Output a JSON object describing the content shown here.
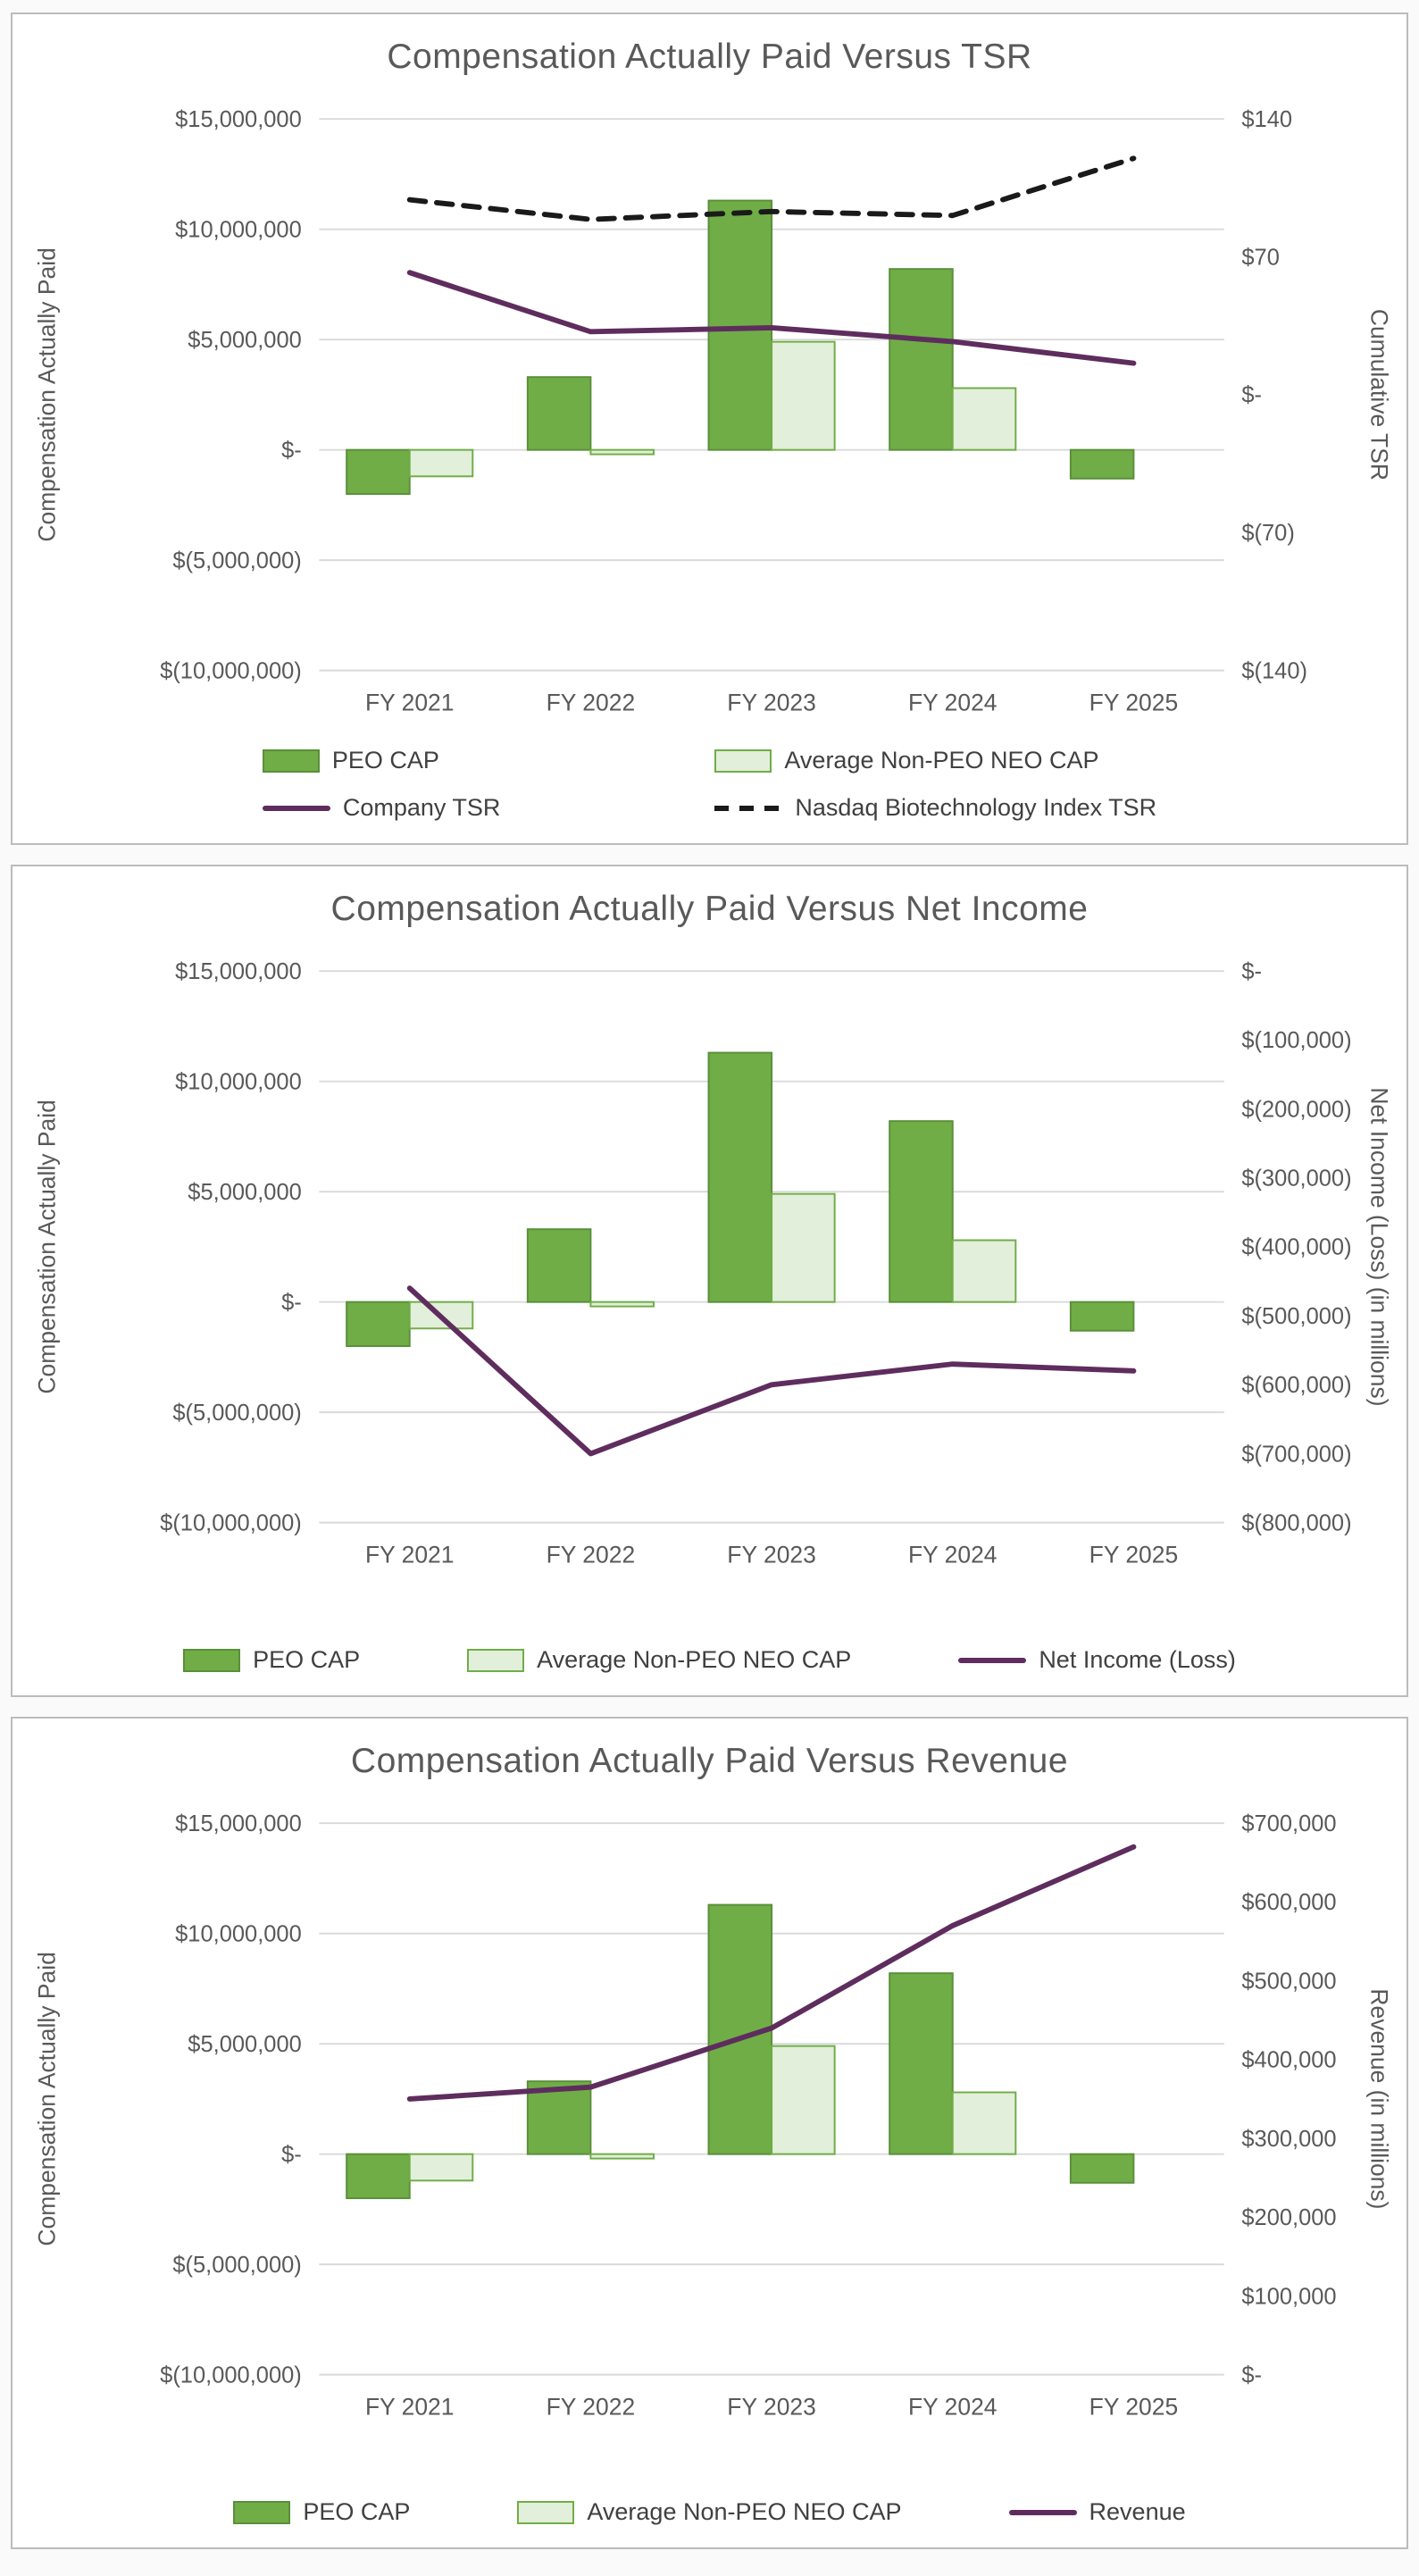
{
  "colors": {
    "title_text": "#595959",
    "axis_text": "#595959",
    "legend_text": "#404040",
    "gridline": "#d9d9d9",
    "panel_border": "#bcbcbc",
    "peo_fill": "#70ad47",
    "peo_border": "#5a8f39",
    "neo_fill": "#e2efda",
    "neo_border": "#70ad47",
    "line_purple": "#5e2d5e",
    "line_black": "#1a1a1a"
  },
  "chart_data": [
    {
      "type": "combo",
      "title": "Compensation Actually Paid Versus TSR",
      "categories": [
        "FY 2021",
        "FY 2022",
        "FY 2023",
        "FY 2024",
        "FY 2025"
      ],
      "left_axis": {
        "label": "Compensation Actually Paid",
        "min": -10000000,
        "max": 15000000,
        "ticks": [
          {
            "label": "$15,000,000",
            "value": 15000000
          },
          {
            "label": "$10,000,000",
            "value": 10000000
          },
          {
            "label": "$5,000,000",
            "value": 5000000
          },
          {
            "label": "$-",
            "value": 0
          },
          {
            "label": "$(5,000,000)",
            "value": -5000000
          },
          {
            "label": "$(10,000,000)",
            "value": -10000000
          }
        ]
      },
      "right_axis": {
        "label": "Cumulative TSR",
        "min": -140,
        "max": 140,
        "ticks": [
          {
            "label": "$140",
            "value": 140
          },
          {
            "label": "$70",
            "value": 70
          },
          {
            "label": "$-",
            "value": 0
          },
          {
            "label": "$(70)",
            "value": -70
          },
          {
            "label": "$(140)",
            "value": -140
          }
        ]
      },
      "bar_series": [
        {
          "name": "PEO CAP",
          "swatch": "bar-solid",
          "values": [
            -2000000,
            3300000,
            11300000,
            8200000,
            -1300000
          ]
        },
        {
          "name": "Average Non-PEO NEO CAP",
          "swatch": "bar-light",
          "values": [
            -1200000,
            -200000,
            4900000,
            2800000,
            0
          ]
        }
      ],
      "line_series": [
        {
          "name": "Company TSR",
          "swatch": "line-purple",
          "values": [
            62,
            32,
            34,
            27,
            16
          ]
        },
        {
          "name": "Nasdaq Biotechnology Index TSR",
          "swatch": "line-dashed",
          "values": [
            99,
            89,
            93,
            91,
            120
          ]
        }
      ],
      "legend_layout": "grid",
      "legend_position": "bottom",
      "grid": true
    },
    {
      "type": "combo",
      "title": "Compensation Actually Paid Versus Net Income",
      "categories": [
        "FY 2021",
        "FY 2022",
        "FY 2023",
        "FY 2024",
        "FY 2025"
      ],
      "left_axis": {
        "label": "Compensation Actually Paid",
        "min": -10000000,
        "max": 15000000,
        "ticks": [
          {
            "label": "$15,000,000",
            "value": 15000000
          },
          {
            "label": "$10,000,000",
            "value": 10000000
          },
          {
            "label": "$5,000,000",
            "value": 5000000
          },
          {
            "label": "$-",
            "value": 0
          },
          {
            "label": "$(5,000,000)",
            "value": -5000000
          },
          {
            "label": "$(10,000,000)",
            "value": -10000000
          }
        ]
      },
      "right_axis": {
        "label": "Net Income (Loss) (in millions)",
        "min": -800000,
        "max": 0,
        "ticks": [
          {
            "label": "$-",
            "value": 0
          },
          {
            "label": "$(100,000)",
            "value": -100000
          },
          {
            "label": "$(200,000)",
            "value": -200000
          },
          {
            "label": "$(300,000)",
            "value": -300000
          },
          {
            "label": "$(400,000)",
            "value": -400000
          },
          {
            "label": "$(500,000)",
            "value": -500000
          },
          {
            "label": "$(600,000)",
            "value": -600000
          },
          {
            "label": "$(700,000)",
            "value": -700000
          },
          {
            "label": "$(800,000)",
            "value": -800000
          }
        ]
      },
      "bar_series": [
        {
          "name": "PEO CAP",
          "swatch": "bar-solid",
          "values": [
            -2000000,
            3300000,
            11300000,
            8200000,
            -1300000
          ]
        },
        {
          "name": "Average Non-PEO NEO CAP",
          "swatch": "bar-light",
          "values": [
            -1200000,
            -200000,
            4900000,
            2800000,
            0
          ]
        }
      ],
      "line_series": [
        {
          "name": "Net Income (Loss)",
          "swatch": "line-purple",
          "values": [
            -460000,
            -700000,
            -600000,
            -570000,
            -580000
          ]
        }
      ],
      "legend_layout": "row",
      "legend_position": "bottom",
      "grid": true
    },
    {
      "type": "combo",
      "title": "Compensation Actually Paid Versus Revenue",
      "categories": [
        "FY 2021",
        "FY 2022",
        "FY 2023",
        "FY 2024",
        "FY 2025"
      ],
      "left_axis": {
        "label": "Compensation Actually Paid",
        "min": -10000000,
        "max": 15000000,
        "ticks": [
          {
            "label": "$15,000,000",
            "value": 15000000
          },
          {
            "label": "$10,000,000",
            "value": 10000000
          },
          {
            "label": "$5,000,000",
            "value": 5000000
          },
          {
            "label": "$-",
            "value": 0
          },
          {
            "label": "$(5,000,000)",
            "value": -5000000
          },
          {
            "label": "$(10,000,000)",
            "value": -10000000
          }
        ]
      },
      "right_axis": {
        "label": "Revenue (in millions)",
        "min": 0,
        "max": 700000,
        "ticks": [
          {
            "label": "$700,000",
            "value": 700000
          },
          {
            "label": "$600,000",
            "value": 600000
          },
          {
            "label": "$500,000",
            "value": 500000
          },
          {
            "label": "$400,000",
            "value": 400000
          },
          {
            "label": "$300,000",
            "value": 300000
          },
          {
            "label": "$200,000",
            "value": 200000
          },
          {
            "label": "$100,000",
            "value": 100000
          },
          {
            "label": "$-",
            "value": 0
          }
        ]
      },
      "bar_series": [
        {
          "name": "PEO CAP",
          "swatch": "bar-solid",
          "values": [
            -2000000,
            3300000,
            11300000,
            8200000,
            -1300000
          ]
        },
        {
          "name": "Average Non-PEO NEO CAP",
          "swatch": "bar-light",
          "values": [
            -1200000,
            -200000,
            4900000,
            2800000,
            0
          ]
        }
      ],
      "line_series": [
        {
          "name": "Revenue",
          "swatch": "line-purple",
          "values": [
            350000,
            365000,
            440000,
            570000,
            670000
          ]
        }
      ],
      "legend_layout": "row",
      "legend_position": "bottom",
      "grid": true
    }
  ]
}
